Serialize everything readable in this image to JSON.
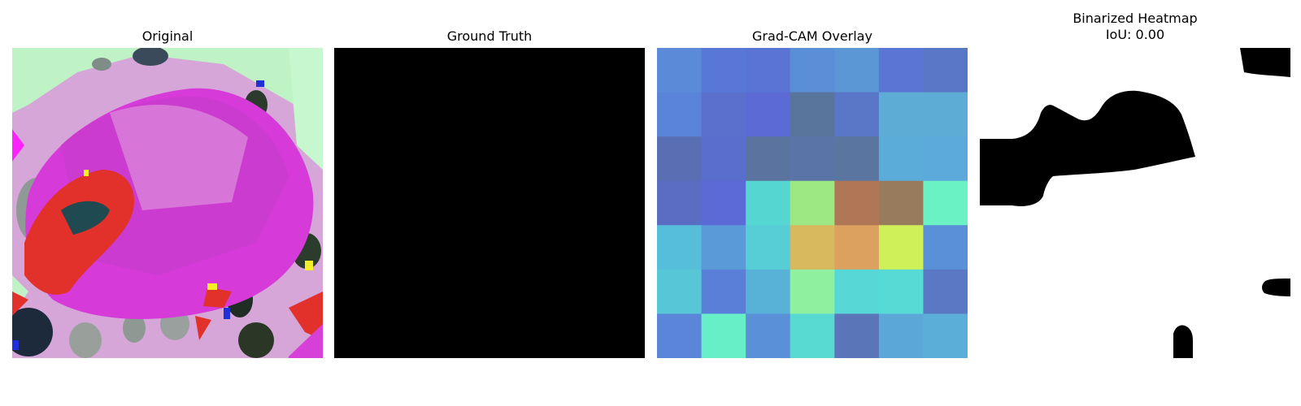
{
  "panels": {
    "original": {
      "title": "Original"
    },
    "ground_truth": {
      "title": "Ground Truth"
    },
    "gradcam": {
      "title": "Grad-CAM Overlay"
    },
    "binarized": {
      "title": "Binarized Heatmap",
      "subtitle": "IoU: 0.00"
    }
  },
  "gradcam_grid": {
    "rows": 7,
    "cols": 7,
    "colors": [
      [
        "#5b8ad8",
        "#5877d6",
        "#5a74d6",
        "#5a8ed6",
        "#5b96d5",
        "#5a75d4",
        "#5a76c7"
      ],
      [
        "#5a84d8",
        "#5b70cd",
        "#5b6ad5",
        "#59759b",
        "#5a76c7",
        "#5cacd6",
        "#5cacd6"
      ],
      [
        "#5a6fb3",
        "#5a6ecd",
        "#5a749f",
        "#5a74a7",
        "#5a76a0",
        "#5cacd9",
        "#5caadb"
      ],
      [
        "#5a6dc2",
        "#5b6ad6",
        "#56d6d0",
        "#9de883",
        "#b07757",
        "#987a5d",
        "#6af2c4"
      ],
      [
        "#57bed9",
        "#5a9ad8",
        "#57ced6",
        "#d8b95e",
        "#dca15f",
        "#d0f05a",
        "#5a90d8"
      ],
      [
        "#57c7d8",
        "#5a7fd8",
        "#58b2d8",
        "#8ff0a0",
        "#57d8d7",
        "#57dad6",
        "#5a78c4"
      ],
      [
        "#5b85d8",
        "#67efc7",
        "#5a90d7",
        "#58d9d2",
        "#5a76b9",
        "#5ba8d8",
        "#5baed8"
      ]
    ]
  }
}
